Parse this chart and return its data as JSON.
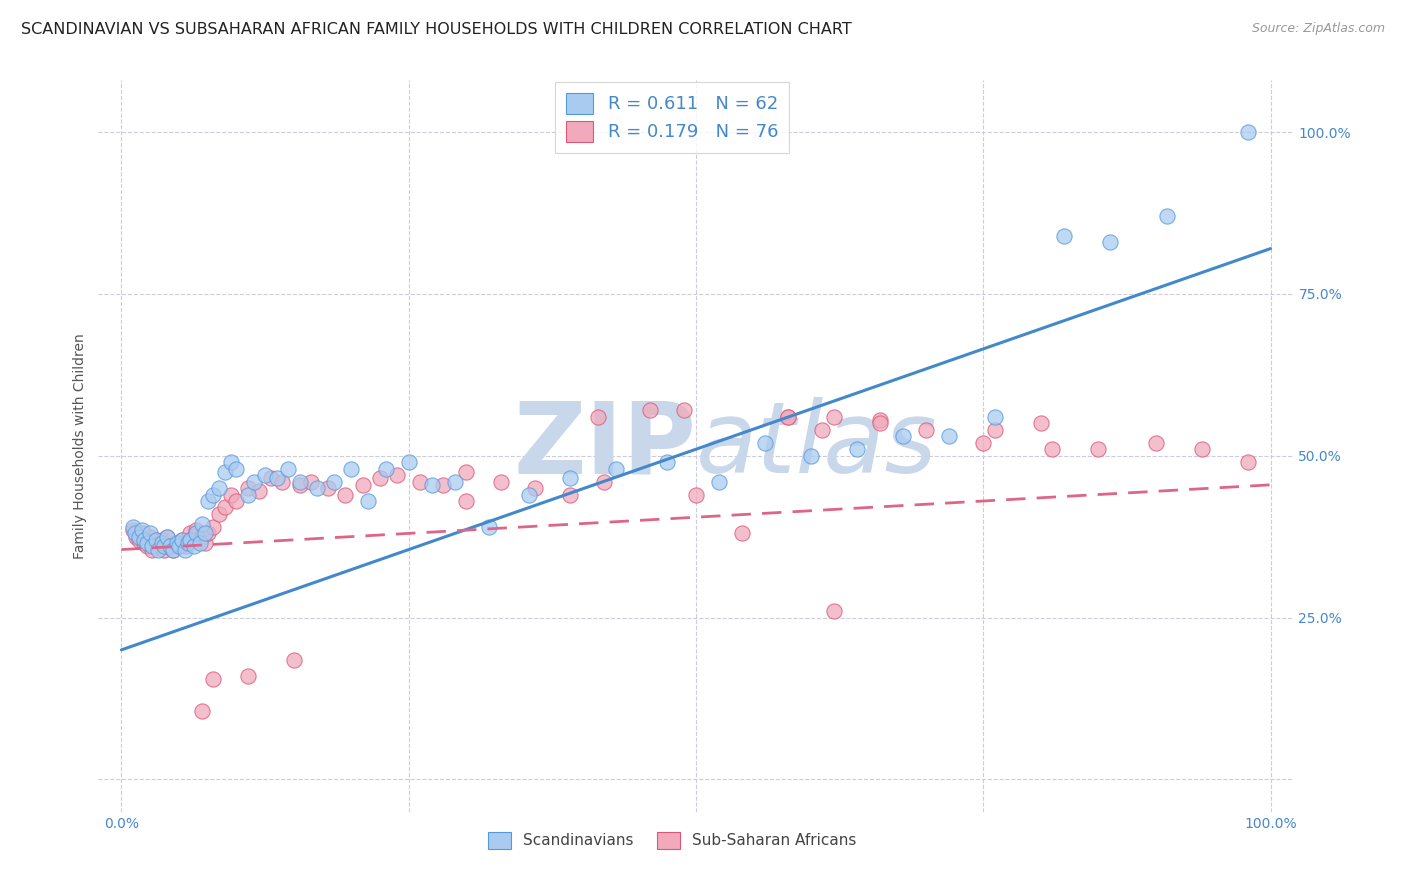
{
  "title": "SCANDINAVIAN VS SUBSAHARAN AFRICAN FAMILY HOUSEHOLDS WITH CHILDREN CORRELATION CHART",
  "source": "Source: ZipAtlas.com",
  "ylabel": "Family Households with Children",
  "xlim": [
    -0.02,
    1.02
  ],
  "ylim": [
    -0.05,
    1.08
  ],
  "xtick_positions": [
    0,
    0.25,
    0.5,
    0.75,
    1.0
  ],
  "xticklabels": [
    "0.0%",
    "",
    "",
    "",
    "100.0%"
  ],
  "ytick_positions": [
    0,
    0.25,
    0.5,
    0.75,
    1.0
  ],
  "yticklabels": [
    "",
    "25.0%",
    "50.0%",
    "75.0%",
    "100.0%"
  ],
  "scand_color": "#aacbf0",
  "scand_edge": "#5599dd",
  "subsah_color": "#f0aabb",
  "subsah_edge": "#dd5577",
  "blue_line_color": "#4488cc",
  "pink_line_color": "#dd6688",
  "watermark_color": "#c8d8ea",
  "legend_label1": "Scandinavians",
  "legend_label2": "Sub-Saharan Africans",
  "scand_line_x0": 0.0,
  "scand_line_x1": 1.0,
  "scand_line_y0": 0.2,
  "scand_line_y1": 0.82,
  "subsah_line_x0": 0.0,
  "subsah_line_x1": 1.0,
  "subsah_line_y0": 0.355,
  "subsah_line_y1": 0.455,
  "background_color": "#ffffff",
  "grid_color": "#ccccdd",
  "title_fontsize": 11.5,
  "source_fontsize": 9,
  "axis_tick_fontsize": 10,
  "ylabel_fontsize": 10,
  "scand_x": [
    0.01,
    0.012,
    0.015,
    0.018,
    0.02,
    0.022,
    0.025,
    0.027,
    0.03,
    0.032,
    0.035,
    0.037,
    0.04,
    0.042,
    0.045,
    0.048,
    0.05,
    0.053,
    0.055,
    0.058,
    0.06,
    0.063,
    0.065,
    0.068,
    0.07,
    0.073,
    0.075,
    0.08,
    0.085,
    0.09,
    0.095,
    0.1,
    0.11,
    0.115,
    0.125,
    0.135,
    0.145,
    0.155,
    0.17,
    0.185,
    0.2,
    0.215,
    0.23,
    0.25,
    0.27,
    0.29,
    0.32,
    0.355,
    0.39,
    0.43,
    0.475,
    0.52,
    0.56,
    0.6,
    0.64,
    0.68,
    0.72,
    0.76,
    0.82,
    0.86,
    0.91,
    0.98
  ],
  "scand_y": [
    0.39,
    0.38,
    0.375,
    0.385,
    0.37,
    0.365,
    0.38,
    0.36,
    0.37,
    0.355,
    0.365,
    0.36,
    0.375,
    0.36,
    0.355,
    0.365,
    0.36,
    0.37,
    0.355,
    0.365,
    0.37,
    0.36,
    0.38,
    0.365,
    0.395,
    0.38,
    0.43,
    0.44,
    0.45,
    0.475,
    0.49,
    0.48,
    0.44,
    0.46,
    0.47,
    0.465,
    0.48,
    0.46,
    0.45,
    0.46,
    0.48,
    0.43,
    0.48,
    0.49,
    0.455,
    0.46,
    0.39,
    0.44,
    0.465,
    0.48,
    0.49,
    0.46,
    0.52,
    0.5,
    0.51,
    0.53,
    0.53,
    0.56,
    0.84,
    0.83,
    0.87,
    1.0
  ],
  "subsah_x": [
    0.01,
    0.013,
    0.015,
    0.018,
    0.02,
    0.022,
    0.025,
    0.027,
    0.03,
    0.033,
    0.035,
    0.037,
    0.04,
    0.042,
    0.045,
    0.048,
    0.05,
    0.053,
    0.055,
    0.058,
    0.06,
    0.063,
    0.065,
    0.068,
    0.07,
    0.073,
    0.075,
    0.08,
    0.085,
    0.09,
    0.095,
    0.1,
    0.11,
    0.12,
    0.13,
    0.14,
    0.155,
    0.165,
    0.18,
    0.195,
    0.21,
    0.225,
    0.24,
    0.26,
    0.28,
    0.3,
    0.33,
    0.36,
    0.39,
    0.42,
    0.46,
    0.5,
    0.54,
    0.58,
    0.62,
    0.66,
    0.7,
    0.75,
    0.8,
    0.85,
    0.9,
    0.94,
    0.98,
    0.3,
    0.415,
    0.49,
    0.58,
    0.61,
    0.66,
    0.76,
    0.81,
    0.62,
    0.07,
    0.08,
    0.11,
    0.15
  ],
  "subsah_y": [
    0.385,
    0.375,
    0.37,
    0.38,
    0.365,
    0.36,
    0.375,
    0.355,
    0.37,
    0.36,
    0.37,
    0.355,
    0.375,
    0.36,
    0.355,
    0.365,
    0.36,
    0.37,
    0.36,
    0.37,
    0.38,
    0.375,
    0.385,
    0.37,
    0.375,
    0.365,
    0.38,
    0.39,
    0.41,
    0.42,
    0.44,
    0.43,
    0.45,
    0.445,
    0.465,
    0.46,
    0.455,
    0.46,
    0.45,
    0.44,
    0.455,
    0.465,
    0.47,
    0.46,
    0.455,
    0.475,
    0.46,
    0.45,
    0.44,
    0.46,
    0.57,
    0.44,
    0.38,
    0.56,
    0.56,
    0.555,
    0.54,
    0.52,
    0.55,
    0.51,
    0.52,
    0.51,
    0.49,
    0.43,
    0.56,
    0.57,
    0.56,
    0.54,
    0.55,
    0.54,
    0.51,
    0.26,
    0.105,
    0.155,
    0.16,
    0.185
  ]
}
